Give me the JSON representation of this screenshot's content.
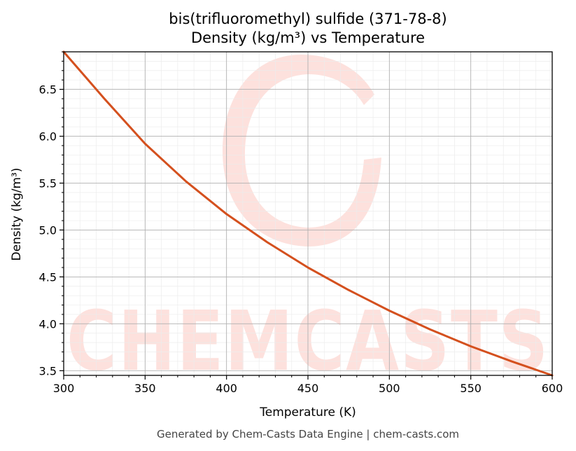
{
  "chart_data": {
    "type": "line",
    "title": "bis(trifluoromethyl) sulfide (371-78-8)",
    "subtitle": "Density (kg/m³) vs Temperature",
    "xlabel": "Temperature (K)",
    "ylabel": "Density (kg/m³)",
    "xlim": [
      300,
      600
    ],
    "ylim": [
      3.45,
      6.9
    ],
    "xticks": [
      "300",
      "350",
      "400",
      "450",
      "500",
      "550",
      "600"
    ],
    "yticks": [
      "3.5",
      "4.0",
      "4.5",
      "5.0",
      "5.5",
      "6.0",
      "6.5"
    ],
    "grid": true,
    "series": [
      {
        "color": "#d4501e",
        "x": [
          300,
          325,
          350,
          375,
          400,
          425,
          450,
          475,
          500,
          525,
          550,
          575,
          600
        ],
        "y": [
          6.9,
          6.4,
          5.92,
          5.52,
          5.17,
          4.87,
          4.6,
          4.36,
          4.14,
          3.94,
          3.76,
          3.6,
          3.45
        ]
      }
    ]
  },
  "watermark": {
    "text": "CHEMCASTS",
    "color": "#fde1dd"
  },
  "footer": "Generated by Chem-Casts Data Engine | chem-casts.com"
}
